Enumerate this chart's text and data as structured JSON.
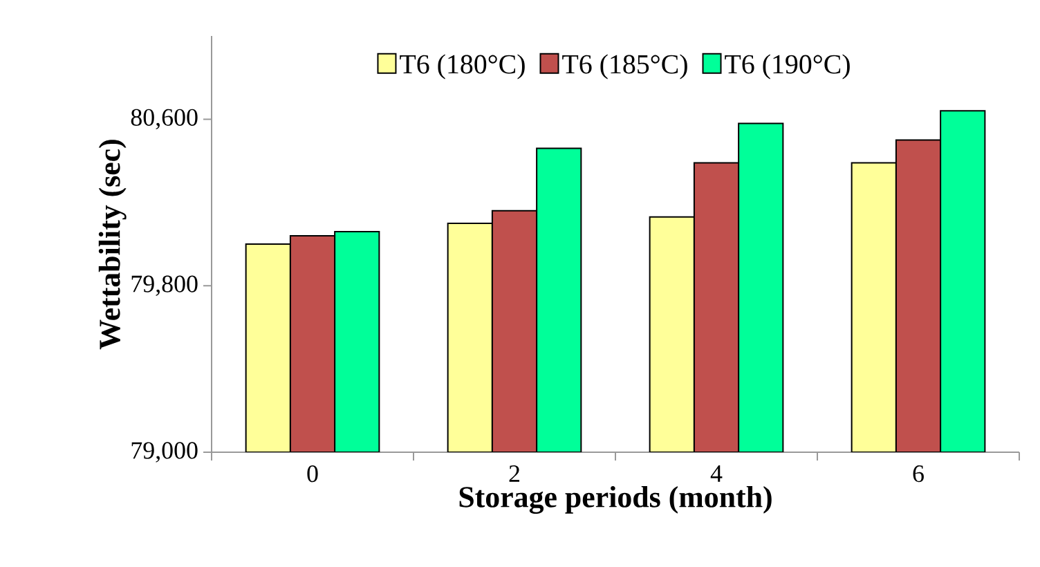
{
  "chart_data": {
    "type": "bar",
    "xlabel": "Storage periods (month)",
    "ylabel": "Wettability (sec)",
    "categories": [
      "0",
      "2",
      "4",
      "6"
    ],
    "series": [
      {
        "name": "T6 (180°C)",
        "color": "#ffff99",
        "values": [
          80000,
          80100,
          80130,
          80390
        ]
      },
      {
        "name": "T6 (185°C)",
        "color": "#c0504d",
        "values": [
          80040,
          80160,
          80390,
          80500
        ]
      },
      {
        "name": "T6 (190°C)",
        "color": "#00ff99",
        "values": [
          80060,
          80460,
          80580,
          80640
        ]
      }
    ],
    "ylim": [
      79000,
      81000
    ],
    "yticks": [
      {
        "value": 79000,
        "label": "79,000"
      },
      {
        "value": 79800,
        "label": "79,800"
      },
      {
        "value": 80600,
        "label": "80,600"
      }
    ],
    "grid": false,
    "legend": "top"
  }
}
